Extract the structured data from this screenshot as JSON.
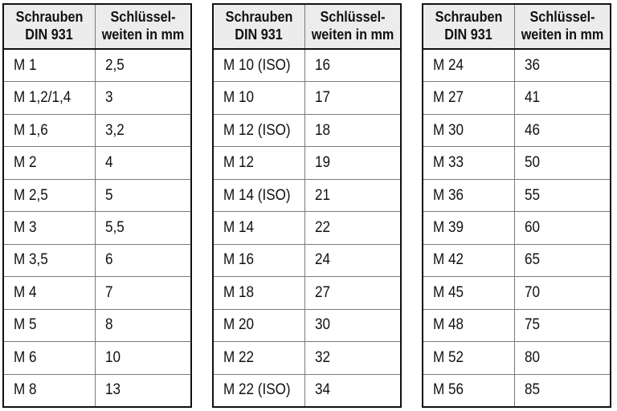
{
  "page": {
    "background": "#ffffff"
  },
  "colors": {
    "header_bg": "#ececec",
    "outer_border": "#111111",
    "grid_line": "#7a7a7a",
    "text": "#111111"
  },
  "tables": [
    {
      "name": "din931-table-small-sizes",
      "header": {
        "col1_line1": "Schrauben",
        "col1_line2": "DIN 931",
        "col2_line1": "Schlüssel-",
        "col2_line2": "weiten in mm"
      },
      "rows": [
        {
          "screw": "M 1",
          "width_mm": "2,5"
        },
        {
          "screw": "M 1,2/1,4",
          "width_mm": "3"
        },
        {
          "screw": "M 1,6",
          "width_mm": "3,2"
        },
        {
          "screw": "M 2",
          "width_mm": "4"
        },
        {
          "screw": "M 2,5",
          "width_mm": "5"
        },
        {
          "screw": "M 3",
          "width_mm": "5,5"
        },
        {
          "screw": "M 3,5",
          "width_mm": "6"
        },
        {
          "screw": "M 4",
          "width_mm": "7"
        },
        {
          "screw": "M 5",
          "width_mm": "8"
        },
        {
          "screw": "M 6",
          "width_mm": "10"
        },
        {
          "screw": "M 8",
          "width_mm": "13"
        }
      ]
    },
    {
      "name": "din931-table-medium-sizes",
      "header": {
        "col1_line1": "Schrauben",
        "col1_line2": "DIN 931",
        "col2_line1": "Schlüssel-",
        "col2_line2": "weiten in mm"
      },
      "rows": [
        {
          "screw": "M 10 (ISO)",
          "width_mm": "16"
        },
        {
          "screw": "M 10",
          "width_mm": "17"
        },
        {
          "screw": "M 12 (ISO)",
          "width_mm": "18"
        },
        {
          "screw": "M 12",
          "width_mm": "19"
        },
        {
          "screw": "M 14 (ISO)",
          "width_mm": "21"
        },
        {
          "screw": "M 14",
          "width_mm": "22"
        },
        {
          "screw": "M 16",
          "width_mm": "24"
        },
        {
          "screw": "M 18",
          "width_mm": "27"
        },
        {
          "screw": "M 20",
          "width_mm": "30"
        },
        {
          "screw": "M 22",
          "width_mm": "32"
        },
        {
          "screw": "M 22 (ISO)",
          "width_mm": "34"
        }
      ]
    },
    {
      "name": "din931-table-large-sizes",
      "header": {
        "col1_line1": "Schrauben",
        "col1_line2": "DIN 931",
        "col2_line1": "Schlüssel-",
        "col2_line2": "weiten in mm"
      },
      "rows": [
        {
          "screw": "M 24",
          "width_mm": "36"
        },
        {
          "screw": "M 27",
          "width_mm": "41"
        },
        {
          "screw": "M 30",
          "width_mm": "46"
        },
        {
          "screw": "M 33",
          "width_mm": "50"
        },
        {
          "screw": "M 36",
          "width_mm": "55"
        },
        {
          "screw": "M 39",
          "width_mm": "60"
        },
        {
          "screw": "M 42",
          "width_mm": "65"
        },
        {
          "screw": "M 45",
          "width_mm": "70"
        },
        {
          "screw": "M 48",
          "width_mm": "75"
        },
        {
          "screw": "M 52",
          "width_mm": "80"
        },
        {
          "screw": "M 56",
          "width_mm": "85"
        }
      ]
    }
  ]
}
